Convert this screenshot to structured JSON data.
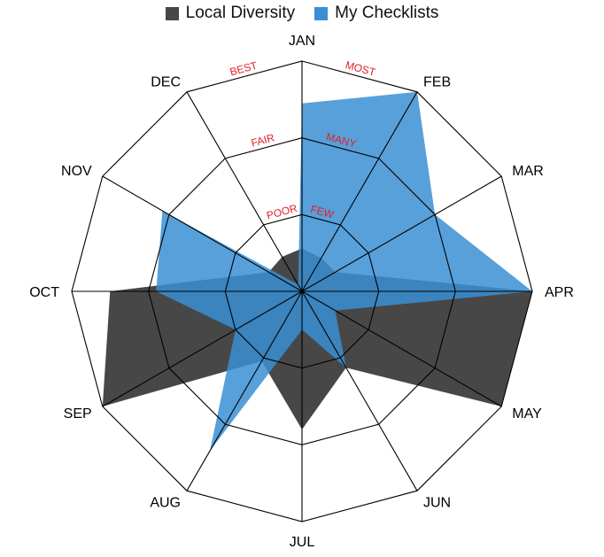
{
  "chart_data": {
    "type": "radar",
    "categories": [
      "JAN",
      "FEB",
      "MAR",
      "APR",
      "MAY",
      "JUN",
      "JUL",
      "AUG",
      "SEP",
      "OCT",
      "NOV",
      "DEC"
    ],
    "rlim": [
      0,
      3
    ],
    "series": [
      {
        "name": "Local Diversity",
        "color": "#474747",
        "values": [
          0.56,
          0.5,
          0.5,
          3.0,
          3.0,
          1.15,
          1.8,
          1.05,
          3.0,
          2.5,
          0.5,
          0.52
        ]
      },
      {
        "name": "My Checklists",
        "color": "#3a8fd4",
        "values": [
          2.45,
          3.0,
          2.0,
          3.0,
          0.5,
          1.15,
          0.5,
          2.4,
          1.0,
          1.9,
          2.1,
          0.1
        ]
      }
    ],
    "scale_labels": {
      "left": [
        "POOR",
        "FAIR",
        "BEST"
      ],
      "right": [
        "FEW",
        "MANY",
        "MOST"
      ]
    }
  }
}
